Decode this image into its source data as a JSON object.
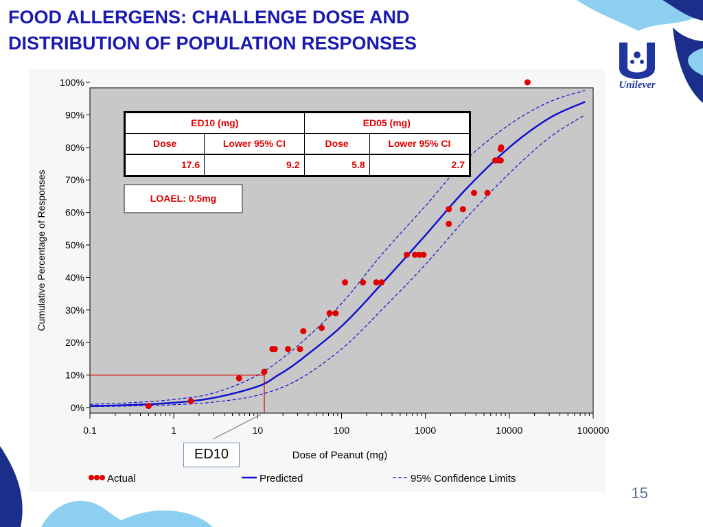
{
  "slide": {
    "title_line1": "FOOD ALLERGENS: CHALLENGE DOSE AND",
    "title_line2": "DISTRIBUTION OF POPULATION RESPONSES",
    "page_number": "15",
    "logo_text": "Unilever",
    "colors": {
      "title": "#1a1ab0",
      "curve": "#1010d0",
      "points": "#e00000",
      "plot_bg": "#c8c8c8"
    }
  },
  "table": {
    "ed10_header": "ED10 (mg)",
    "ed05_header": "ED05 (mg)",
    "col_dose_1": "Dose",
    "col_ci_1": "Lower 95% CI",
    "col_dose_2": "Dose",
    "col_ci_2": "Lower 95% CI",
    "ed10_dose": "17.6",
    "ed10_ci": "9.2",
    "ed05_dose": "5.8",
    "ed05_ci": "2.7"
  },
  "loael": "LOAEL: 0.5mg",
  "ed10_callout": "ED10",
  "chart_data": {
    "type": "scatter",
    "xlabel": "Dose of Peanut (mg)",
    "ylabel": "Cumulative Percentage of Responses",
    "xscale": "log",
    "xlim": [
      0.1,
      100000
    ],
    "ylim": [
      0,
      100
    ],
    "x_ticks": [
      "0.1",
      "1",
      "10",
      "100",
      "1000",
      "10000",
      "100000"
    ],
    "y_ticks": [
      "0%",
      "10%",
      "20%",
      "30%",
      "40%",
      "50%",
      "60%",
      "70%",
      "80%",
      "90%",
      "100%"
    ],
    "legend": [
      "Actual",
      "Predicted",
      "95% Confidence Limits"
    ],
    "legend_position": "bottom",
    "series": [
      {
        "name": "Actual",
        "kind": "points",
        "points": [
          [
            0.5,
            0.5
          ],
          [
            1.6,
            2
          ],
          [
            6,
            9
          ],
          [
            12,
            11
          ],
          [
            15,
            18
          ],
          [
            16,
            18
          ],
          [
            23,
            18
          ],
          [
            32,
            18
          ],
          [
            35,
            23.5
          ],
          [
            58,
            24.5
          ],
          [
            72,
            29
          ],
          [
            85,
            29
          ],
          [
            110,
            38.5
          ],
          [
            180,
            38.5
          ],
          [
            260,
            38.5
          ],
          [
            300,
            38.5
          ],
          [
            600,
            47
          ],
          [
            750,
            47
          ],
          [
            850,
            47
          ],
          [
            950,
            47
          ],
          [
            1900,
            56.5
          ],
          [
            1900,
            61
          ],
          [
            2800,
            61
          ],
          [
            3800,
            66
          ],
          [
            5500,
            66
          ],
          [
            6800,
            76
          ],
          [
            7500,
            76
          ],
          [
            7900,
            76
          ],
          [
            7900,
            79.5
          ],
          [
            8000,
            80
          ],
          [
            16500,
            100
          ]
        ]
      },
      {
        "name": "Predicted",
        "kind": "line",
        "points": [
          [
            0.1,
            0.5
          ],
          [
            0.3,
            0.8
          ],
          [
            1,
            1.5
          ],
          [
            3,
            3
          ],
          [
            10,
            6.5
          ],
          [
            17.6,
            10
          ],
          [
            30,
            14
          ],
          [
            100,
            25
          ],
          [
            300,
            38
          ],
          [
            1000,
            53
          ],
          [
            3000,
            67
          ],
          [
            10000,
            80
          ],
          [
            30000,
            89
          ],
          [
            80000,
            94
          ]
        ]
      },
      {
        "name": "95% Confidence Limits (upper)",
        "kind": "dashed",
        "points": [
          [
            0.1,
            1
          ],
          [
            0.3,
            1.5
          ],
          [
            1,
            2.5
          ],
          [
            3,
            4.5
          ],
          [
            10,
            10
          ],
          [
            30,
            19
          ],
          [
            100,
            32
          ],
          [
            300,
            47
          ],
          [
            1000,
            62
          ],
          [
            3000,
            76
          ],
          [
            10000,
            87
          ],
          [
            30000,
            94
          ],
          [
            80000,
            97.5
          ]
        ]
      },
      {
        "name": "95% Confidence Limits (lower)",
        "kind": "dashed",
        "points": [
          [
            0.1,
            0.3
          ],
          [
            0.3,
            0.5
          ],
          [
            1,
            0.9
          ],
          [
            3,
            1.7
          ],
          [
            10,
            3.8
          ],
          [
            30,
            8.5
          ],
          [
            100,
            18
          ],
          [
            300,
            30
          ],
          [
            1000,
            44
          ],
          [
            3000,
            58
          ],
          [
            10000,
            72
          ],
          [
            30000,
            83
          ],
          [
            80000,
            90
          ]
        ]
      }
    ],
    "ed10_marker": {
      "x": 12,
      "y": 10
    }
  }
}
